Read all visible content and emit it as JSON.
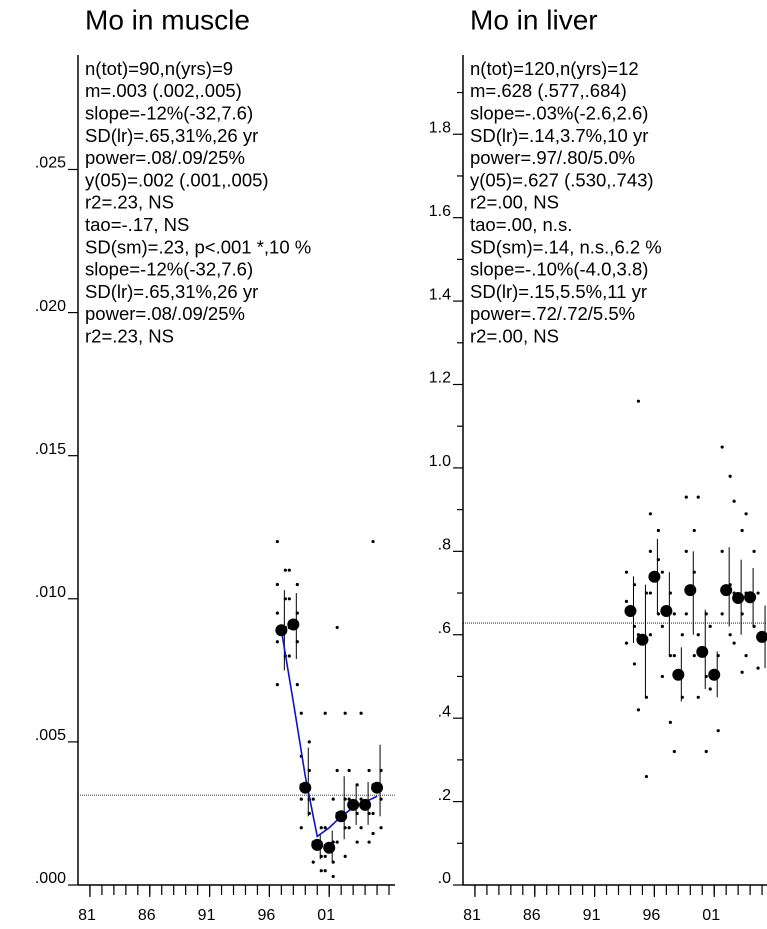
{
  "chart_data": [
    {
      "type": "scatter",
      "title": "Mo in muscle",
      "stats": [
        "n(tot)=90,n(yrs)=9",
        "m=.003 (.002,.005)",
        "slope=-12%(-32,7.6)",
        "SD(lr)=.65,31%,26 yr",
        "power=.08/.09/25%",
        "y(05)=.002 (.001,.005)",
        "r2=.23, NS",
        "tao=-.17, NS",
        "SD(sm)=.23, p<.001 *,10  %",
        "slope=-12%(-32,7.6)",
        "SD(lr)=.65,31%,26 yr",
        "power=.08/.09/25%",
        "r2=.23, NS"
      ],
      "x": [
        1997,
        1998,
        1999,
        2000,
        2001,
        2002,
        2003,
        2004,
        2005
      ],
      "values": [
        0.0089,
        0.0091,
        0.0034,
        0.0014,
        0.0013,
        0.0024,
        0.0028,
        0.0028,
        0.0034
      ],
      "ci_low": [
        0.0075,
        0.0079,
        0.0024,
        0.0009,
        0.0008,
        0.0016,
        0.0021,
        0.0021,
        0.0024
      ],
      "ci_high": [
        0.0103,
        0.0102,
        0.0048,
        0.0018,
        0.0019,
        0.0038,
        0.0035,
        0.0036,
        0.0049
      ],
      "samples": [
        [
          0.012,
          0.011,
          0.0105,
          0.01,
          0.0095,
          0.009,
          0.0085,
          0.008,
          0.007
        ],
        [
          0.011,
          0.0105,
          0.01,
          0.0095,
          0.009,
          0.0085,
          0.008,
          0.007
        ],
        [
          0.006,
          0.005,
          0.0045,
          0.004,
          0.0035,
          0.003,
          0.003,
          0.0025,
          0.002
        ],
        [
          0.003,
          0.002,
          0.0015,
          0.001,
          0.0008,
          0.0005
        ],
        [
          0.006,
          0.003,
          0.002,
          0.0015,
          0.001,
          0.0008,
          0.0005,
          0.0003
        ],
        [
          0.009,
          0.006,
          0.004,
          0.003,
          0.0025,
          0.002,
          0.0015,
          0.001
        ],
        [
          0.004,
          0.0035,
          0.003,
          0.0025,
          0.002,
          0.0015
        ],
        [
          0.006,
          0.004,
          0.003,
          0.0025,
          0.002,
          0.0015
        ],
        [
          0.012,
          0.004,
          0.0035,
          0.003,
          0.0025,
          0.002,
          0.0018
        ]
      ],
      "smooth": [
        0.0089,
        0.0064,
        0.0038,
        0.0017,
        0.002,
        0.0024,
        0.0027,
        0.0029,
        0.0031
      ],
      "smooth_color": "#1010c8",
      "reference": 0.00314,
      "xlim": [
        1980,
        2006.5
      ],
      "ylim": [
        0,
        0.029
      ],
      "xticks": [
        {
          "value": 1981,
          "label": "81"
        },
        {
          "value": 1986,
          "label": "86"
        },
        {
          "value": 1991,
          "label": "91"
        },
        {
          "value": 1996,
          "label": "96"
        },
        {
          "value": 2001,
          "label": "01"
        }
      ],
      "minor_xticks": [
        1981,
        1982,
        1983,
        1984,
        1985,
        1986,
        1987,
        1988,
        1989,
        1990,
        1991,
        1992,
        1993,
        1994,
        1995,
        1996,
        1997,
        1998,
        1999,
        2000,
        2001,
        2002,
        2003,
        2004,
        2005,
        2006
      ],
      "yticks": [
        {
          "value": 0,
          "label": ".000"
        },
        {
          "value": 0.005,
          "label": ".005"
        },
        {
          "value": 0.01,
          "label": ".010"
        },
        {
          "value": 0.015,
          "label": ".015"
        },
        {
          "value": 0.02,
          "label": ".020"
        },
        {
          "value": 0.025,
          "label": ".025"
        }
      ],
      "minor_yticks": [],
      "color": "#000000"
    },
    {
      "type": "scatter",
      "title": "Mo in liver",
      "stats": [
        "n(tot)=120,n(yrs)=12",
        "m=.628 (.577,.684)",
        "slope=-.03%(-2.6,2.6)",
        "SD(lr)=.14,3.7%,10 yr",
        "power=.97/.80/5.0%",
        "y(05)=.627 (.530,.743)",
        "r2=.00, NS",
        "tao=.00, n.s.",
        "SD(sm)=.14, n.s.,6.2 %",
        "slope=-.10%(-4.0,3.8)",
        "SD(lr)=.15,5.5%,11 yr",
        "power=.72/.72/5.5%",
        "r2=.00, NS"
      ],
      "x": [
        1994,
        1995,
        1996,
        1997,
        1998,
        1999,
        2000,
        2001,
        2002,
        2003,
        2004,
        2005
      ],
      "values": [
        0.657,
        0.588,
        0.739,
        0.657,
        0.504,
        0.707,
        0.559,
        0.504,
        0.707,
        0.688,
        0.69,
        0.595
      ],
      "ci_low": [
        0.58,
        0.45,
        0.65,
        0.55,
        0.44,
        0.6,
        0.47,
        0.45,
        0.62,
        0.6,
        0.62,
        0.52
      ],
      "ci_high": [
        0.74,
        0.72,
        0.83,
        0.75,
        0.57,
        0.8,
        0.66,
        0.56,
        0.81,
        0.78,
        0.76,
        0.67
      ],
      "samples": [
        [
          0.75,
          0.72,
          0.68,
          0.62,
          0.58,
          0.53
        ],
        [
          1.16,
          0.7,
          0.6,
          0.45,
          0.42,
          0.26
        ],
        [
          0.89,
          0.85,
          0.8,
          0.78,
          0.7,
          0.65,
          0.6
        ],
        [
          0.75,
          0.7,
          0.62,
          0.55,
          0.5,
          0.39
        ],
        [
          0.65,
          0.6,
          0.55,
          0.45,
          0.32
        ],
        [
          0.93,
          0.85,
          0.8,
          0.75,
          0.65,
          0.55
        ],
        [
          0.93,
          0.65,
          0.6,
          0.5,
          0.45,
          0.32
        ],
        [
          0.62,
          0.55,
          0.47,
          0.37
        ],
        [
          1.05,
          0.98,
          0.8,
          0.72,
          0.65,
          0.6
        ],
        [
          0.92,
          0.85,
          0.7,
          0.65,
          0.58,
          0.51
        ],
        [
          0.89,
          0.8,
          0.7,
          0.62,
          0.55
        ],
        [
          0.7,
          0.6,
          0.52
        ]
      ],
      "reference": 0.628,
      "xlim": [
        1980,
        2006.5
      ],
      "ylim": [
        0,
        1.99
      ],
      "xticks": [
        {
          "value": 1981,
          "label": "81"
        },
        {
          "value": 1986,
          "label": "86"
        },
        {
          "value": 1991,
          "label": "91"
        },
        {
          "value": 1996,
          "label": "96"
        },
        {
          "value": 2001,
          "label": "01"
        }
      ],
      "minor_xticks": [
        1981,
        1982,
        1983,
        1984,
        1985,
        1986,
        1987,
        1988,
        1989,
        1990,
        1991,
        1992,
        1993,
        1994,
        1995,
        1996,
        1997,
        1998,
        1999,
        2000,
        2001,
        2002,
        2003,
        2004,
        2005,
        2006
      ],
      "yticks": [
        {
          "value": 0,
          "label": ".0"
        },
        {
          "value": 0.2,
          "label": ".2"
        },
        {
          "value": 0.4,
          "label": ".4"
        },
        {
          "value": 0.6,
          "label": ".6"
        },
        {
          "value": 0.8,
          "label": ".8"
        },
        {
          "value": 1,
          "label": "1.0"
        },
        1.2,
        1.4,
        1.6,
        1.8
      ],
      "minor_yticks": [
        0.1,
        0.3,
        0.5,
        0.7,
        0.9,
        1.1,
        1.3,
        1.5,
        1.7,
        1.9
      ],
      "color": "#000000"
    }
  ]
}
